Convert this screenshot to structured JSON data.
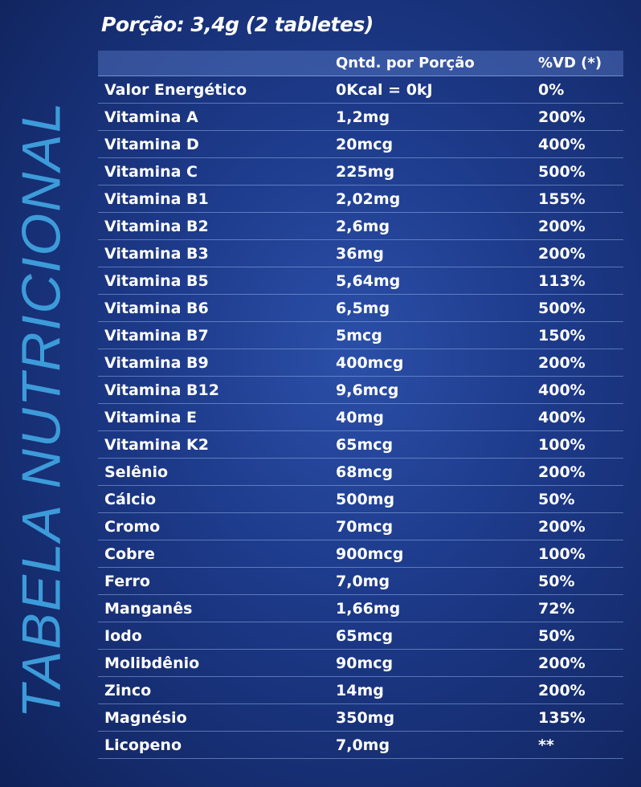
{
  "side_title": "TABELA NUTRICIONAL",
  "portion": "Porção: 3,4g (2 tabletes)",
  "table": {
    "headers": [
      "",
      "Qntd. por Porção",
      "%VD (*)"
    ],
    "rows": [
      {
        "name": "Valor Energético",
        "amount": "0Kcal = 0kJ",
        "dv": "0%"
      },
      {
        "name": "Vitamina A",
        "amount": "1,2mg",
        "dv": "200%"
      },
      {
        "name": "Vitamina D",
        "amount": "20mcg",
        "dv": "400%"
      },
      {
        "name": "Vitamina C",
        "amount": "225mg",
        "dv": "500%"
      },
      {
        "name": "Vitamina B1",
        "amount": "2,02mg",
        "dv": "155%"
      },
      {
        "name": "Vitamina B2",
        "amount": "2,6mg",
        "dv": "200%"
      },
      {
        "name": "Vitamina B3",
        "amount": "36mg",
        "dv": "200%"
      },
      {
        "name": "Vitamina B5",
        "amount": "5,64mg",
        "dv": "113%"
      },
      {
        "name": "Vitamina B6",
        "amount": "6,5mg",
        "dv": "500%"
      },
      {
        "name": "Vitamina B7",
        "amount": "5mcg",
        "dv": "150%"
      },
      {
        "name": "Vitamina B9",
        "amount": "400mcg",
        "dv": "200%"
      },
      {
        "name": "Vitamina B12",
        "amount": "9,6mcg",
        "dv": "400%"
      },
      {
        "name": "Vitamina E",
        "amount": "40mg",
        "dv": "400%"
      },
      {
        "name": "Vitamina K2",
        "amount": "65mcg",
        "dv": "100%"
      },
      {
        "name": "Selênio",
        "amount": "68mcg",
        "dv": "200%"
      },
      {
        "name": "Cálcio",
        "amount": "500mg",
        "dv": "50%"
      },
      {
        "name": "Cromo",
        "amount": "70mcg",
        "dv": "200%"
      },
      {
        "name": "Cobre",
        "amount": "900mcg",
        "dv": "100%"
      },
      {
        "name": "Ferro",
        "amount": "7,0mg",
        "dv": "50%"
      },
      {
        "name": "Manganês",
        "amount": "1,66mg",
        "dv": "72%"
      },
      {
        "name": "Iodo",
        "amount": "65mcg",
        "dv": "50%"
      },
      {
        "name": "Molibdênio",
        "amount": "90mcg",
        "dv": "200%"
      },
      {
        "name": "Zinco",
        "amount": "14mg",
        "dv": "200%"
      },
      {
        "name": "Magnésio",
        "amount": "350mg",
        "dv": "135%"
      },
      {
        "name": "Licopeno",
        "amount": "7,0mg",
        "dv": "**"
      }
    ]
  }
}
